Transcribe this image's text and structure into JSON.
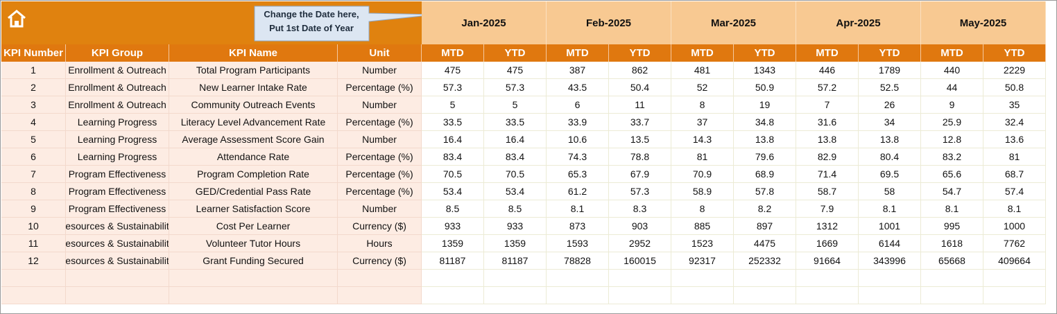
{
  "callout": [
    "Change the Date here,",
    "Put 1st Date of Year"
  ],
  "months": [
    "Jan-2025",
    "Feb-2025",
    "Mar-2025",
    "Apr-2025",
    "May-2025"
  ],
  "columns": [
    "KPI Number",
    "KPI Group",
    "KPI Name",
    "Unit"
  ],
  "sub_columns": [
    "MTD",
    "YTD"
  ],
  "rows": [
    {
      "number": 1,
      "group": "Enrollment & Outreach",
      "name": "Total Program Participants",
      "unit": "Number",
      "values": [
        475,
        475,
        387,
        862,
        481,
        1343,
        446,
        1789,
        440,
        2229
      ]
    },
    {
      "number": 2,
      "group": "Enrollment & Outreach",
      "name": "New Learner Intake Rate",
      "unit": "Percentage (%)",
      "values": [
        57.3,
        57.3,
        43.5,
        50.4,
        52,
        50.9,
        57.2,
        52.5,
        44,
        50.8
      ]
    },
    {
      "number": 3,
      "group": "Enrollment & Outreach",
      "name": "Community Outreach Events",
      "unit": "Number",
      "values": [
        5,
        5,
        6,
        11,
        8,
        19,
        7,
        26,
        9,
        35
      ]
    },
    {
      "number": 4,
      "group": "Learning Progress",
      "name": "Literacy Level Advancement Rate",
      "unit": "Percentage (%)",
      "values": [
        33.5,
        33.5,
        33.9,
        33.7,
        37,
        34.8,
        31.6,
        34,
        25.9,
        32.4
      ]
    },
    {
      "number": 5,
      "group": "Learning Progress",
      "name": "Average Assessment Score Gain",
      "unit": "Number",
      "values": [
        16.4,
        16.4,
        10.6,
        13.5,
        14.3,
        13.8,
        13.8,
        13.8,
        12.8,
        13.6
      ]
    },
    {
      "number": 6,
      "group": "Learning Progress",
      "name": "Attendance Rate",
      "unit": "Percentage (%)",
      "values": [
        83.4,
        83.4,
        74.3,
        78.8,
        81,
        79.6,
        82.9,
        80.4,
        83.2,
        81
      ]
    },
    {
      "number": 7,
      "group": "Program Effectiveness",
      "name": "Program Completion Rate",
      "unit": "Percentage (%)",
      "values": [
        70.5,
        70.5,
        65.3,
        67.9,
        70.9,
        68.9,
        71.4,
        69.5,
        65.6,
        68.7
      ]
    },
    {
      "number": 8,
      "group": "Program Effectiveness",
      "name": "GED/Credential Pass Rate",
      "unit": "Percentage (%)",
      "values": [
        53.4,
        53.4,
        61.2,
        57.3,
        58.9,
        57.8,
        58.7,
        58,
        54.7,
        57.4
      ]
    },
    {
      "number": 9,
      "group": "Program Effectiveness",
      "name": "Learner Satisfaction Score",
      "unit": "Number",
      "values": [
        8.5,
        8.5,
        8.1,
        8.3,
        8,
        8.2,
        7.9,
        8.1,
        8.1,
        8.1
      ]
    },
    {
      "number": 10,
      "group": "esources & Sustainabilit",
      "name": "Cost Per Learner",
      "unit": "Currency ($)",
      "values": [
        933,
        933,
        873,
        903,
        885,
        897,
        1312,
        1001,
        995,
        1000
      ]
    },
    {
      "number": 11,
      "group": "esources & Sustainabilit",
      "name": "Volunteer Tutor Hours",
      "unit": "Hours",
      "values": [
        1359,
        1359,
        1593,
        2952,
        1523,
        4475,
        1669,
        6144,
        1618,
        7762
      ]
    },
    {
      "number": 12,
      "group": "esources & Sustainabilit",
      "name": "Grant Funding Secured",
      "unit": "Currency ($)",
      "values": [
        81187,
        81187,
        78828,
        160015,
        92317,
        252332,
        91664,
        343996,
        65668,
        409664
      ]
    }
  ]
}
